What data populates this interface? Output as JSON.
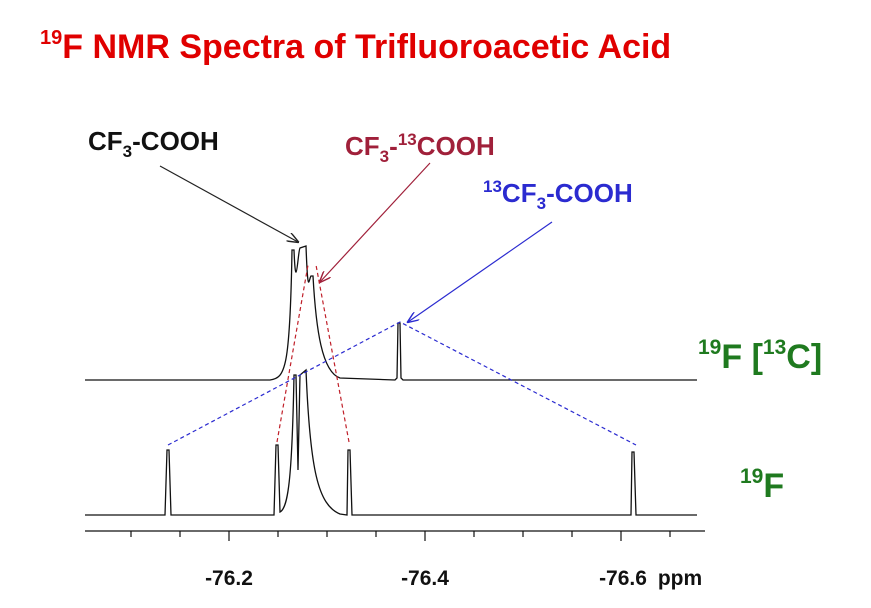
{
  "title": {
    "mass": "19",
    "text": "F NMR Spectra of Trifluoroacetic Acid"
  },
  "annotations": [
    [
      "CF",
      "3",
      "-COOH"
    ],
    [
      "CF",
      "3",
      "-",
      "13",
      "COOH"
    ],
    [
      "13",
      "CF",
      "3",
      "-COOH"
    ]
  ],
  "traces": [
    [
      "19",
      "F [",
      "13",
      "C]"
    ],
    [
      "19",
      "F"
    ]
  ],
  "axis": {
    "ticks": [
      "-76.2",
      "-76.4",
      "-76.6"
    ],
    "unit": "ppm"
  }
}
